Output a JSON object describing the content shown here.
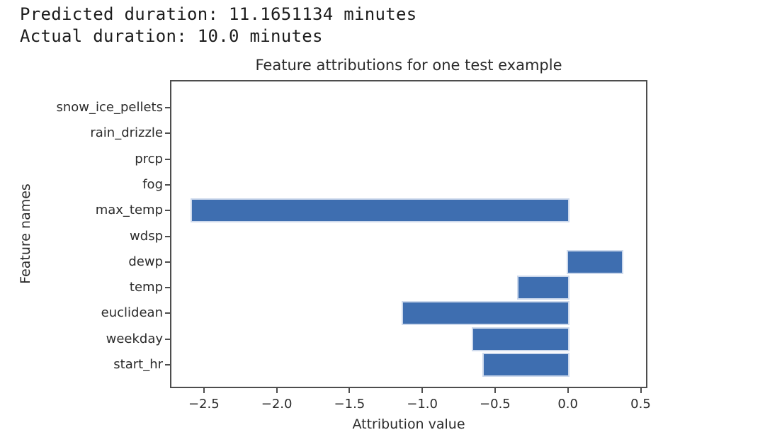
{
  "header": {
    "line1": "Predicted duration: 11.1651134 minutes",
    "line2": "Actual duration: 10.0 minutes"
  },
  "chart_data": {
    "type": "bar",
    "orientation": "horizontal",
    "title": "Feature attributions for one test example",
    "xlabel": "Attribution value",
    "ylabel": "Feature names",
    "categories_top_to_bottom": [
      "snow_ice_pellets",
      "rain_drizzle",
      "prcp",
      "fog",
      "max_temp",
      "wdsp",
      "dewp",
      "temp",
      "euclidean",
      "weekday",
      "start_hr"
    ],
    "values": [
      0,
      0,
      0,
      0,
      -2.58,
      0,
      0.37,
      -0.34,
      -1.13,
      -0.65,
      -0.58
    ],
    "xlim": [
      -2.723,
      0.527
    ],
    "xtick_values": [
      -2.5,
      -2.0,
      -1.5,
      -1.0,
      -0.5,
      0.0,
      0.5
    ],
    "xtick_labels": [
      "−2.5",
      "−2.0",
      "−1.5",
      "−1.0",
      "−0.5",
      "0.0",
      "0.5"
    ],
    "grid": false,
    "legend": null,
    "bar_color": "#3e6eb0",
    "bar_edge_color": "#cdd9ec",
    "spine_color": "#4d4d4d"
  }
}
